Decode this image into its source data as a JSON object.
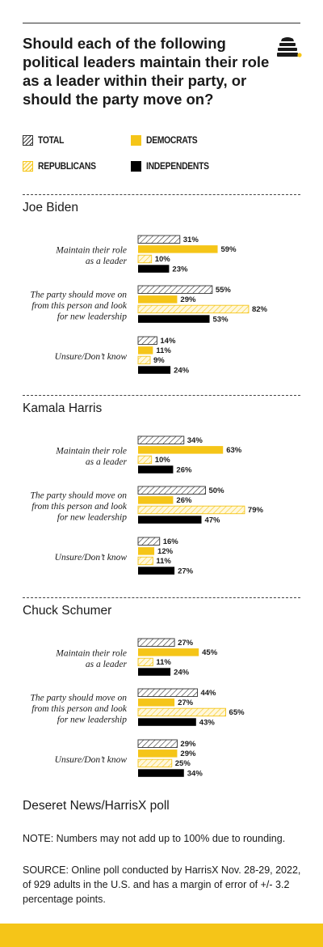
{
  "title": "Should each of the following political leaders maintain their role as a leader within their party, or should the party move on?",
  "logo_icon": "beehive-icon",
  "colors": {
    "total": "#ffffff",
    "democrats": "#f5c518",
    "republicans": "#fff8dc",
    "independents": "#000000",
    "accent": "#f5c518"
  },
  "legend": [
    {
      "key": "total",
      "label": "TOTAL"
    },
    {
      "key": "democrats",
      "label": "DEMOCRATS"
    },
    {
      "key": "republicans",
      "label": "REPUBLICANS"
    },
    {
      "key": "independents",
      "label": "INDEPENDENTS"
    }
  ],
  "chart_data": {
    "type": "bar",
    "orientation": "horizontal",
    "unit": "%",
    "xlim": [
      0,
      100
    ],
    "grid": false,
    "legend_position": "top",
    "series_names": [
      "TOTAL",
      "DEMOCRATS",
      "REPUBLICANS",
      "INDEPENDENTS"
    ],
    "series_keys": [
      "total",
      "democrats",
      "republicans",
      "independents"
    ],
    "panels": [
      {
        "leader": "Joe Biden",
        "categories": [
          {
            "label": [
              "Maintain their role",
              "as a leader"
            ],
            "values": [
              31,
              59,
              10,
              23
            ]
          },
          {
            "label": [
              "The party should move on",
              "from this person and look",
              "for new leadership"
            ],
            "values": [
              55,
              29,
              82,
              53
            ]
          },
          {
            "label": [
              "Unsure/Don’t know"
            ],
            "values": [
              14,
              11,
              9,
              24
            ]
          }
        ]
      },
      {
        "leader": "Kamala Harris",
        "categories": [
          {
            "label": [
              "Maintain their role",
              "as a leader"
            ],
            "values": [
              34,
              63,
              10,
              26
            ]
          },
          {
            "label": [
              "The party should move on",
              "from this person and look",
              "for new leadership"
            ],
            "values": [
              50,
              26,
              79,
              47
            ]
          },
          {
            "label": [
              "Unsure/Don’t know"
            ],
            "values": [
              16,
              12,
              11,
              27
            ]
          }
        ]
      },
      {
        "leader": "Chuck Schumer",
        "categories": [
          {
            "label": [
              "Maintain their role",
              "as a leader"
            ],
            "values": [
              27,
              45,
              11,
              24
            ]
          },
          {
            "label": [
              "The party should move on",
              "from this person and look",
              "for new leadership"
            ],
            "values": [
              44,
              27,
              65,
              43
            ]
          },
          {
            "label": [
              "Unsure/Don’t know"
            ],
            "values": [
              29,
              29,
              25,
              34
            ]
          }
        ]
      }
    ]
  },
  "source_title": "Deseret News/HarrisX poll",
  "note": "NOTE: Numbers may not add up to 100% due to rounding.",
  "source": "SOURCE: Online poll conducted by HarrisX Nov. 28-29, 2022, of 929 adults in the U.S. and has a margin of error of +/- 3.2 percentage points."
}
